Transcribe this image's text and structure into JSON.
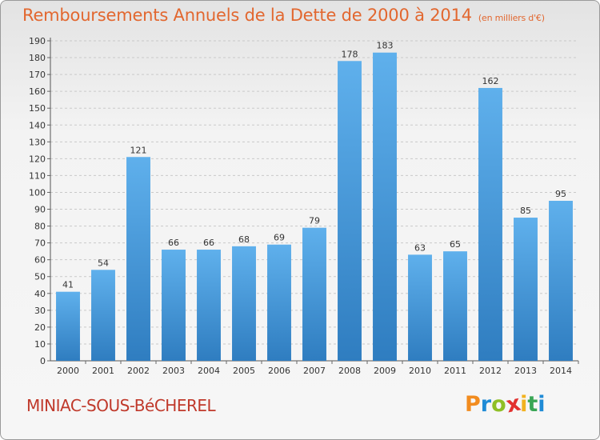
{
  "page": {
    "title": "Remboursements Annuels de la Dette de 2000 à 2014",
    "subtitle": "(en milliers d'€)",
    "city": "MINIAC-SOUS-BéCHEREL",
    "logo": {
      "letters": [
        "P",
        "r",
        "o",
        "x",
        "i",
        "t",
        "i"
      ],
      "colors": [
        "#f28c1f",
        "#1f8bd6",
        "#8fbf26",
        "#e2312f",
        "#f2b21f",
        "#3aa655",
        "#1f8bd6"
      ]
    }
  },
  "colors": {
    "bar_light": "#5fb0ec",
    "bar_dark": "#2f7dc0",
    "title": "#e2672f",
    "city": "#c0392b"
  },
  "chart_data": {
    "type": "bar",
    "title": "Remboursements Annuels de la Dette de 2000 à 2014",
    "subtitle": "(en milliers d'€)",
    "categories": [
      "2000",
      "2001",
      "2002",
      "2003",
      "2004",
      "2005",
      "2006",
      "2007",
      "2008",
      "2009",
      "2010",
      "2011",
      "2012",
      "2013",
      "2014"
    ],
    "values": [
      41,
      54,
      121,
      66,
      66,
      68,
      69,
      79,
      178,
      183,
      63,
      65,
      162,
      85,
      95
    ],
    "ylim": [
      0,
      190
    ],
    "yticks": [
      0,
      10,
      20,
      30,
      40,
      50,
      60,
      70,
      80,
      90,
      100,
      110,
      120,
      130,
      140,
      150,
      160,
      170,
      180,
      190
    ],
    "xlabel": "",
    "ylabel": "",
    "grid": true,
    "legend": "none"
  }
}
